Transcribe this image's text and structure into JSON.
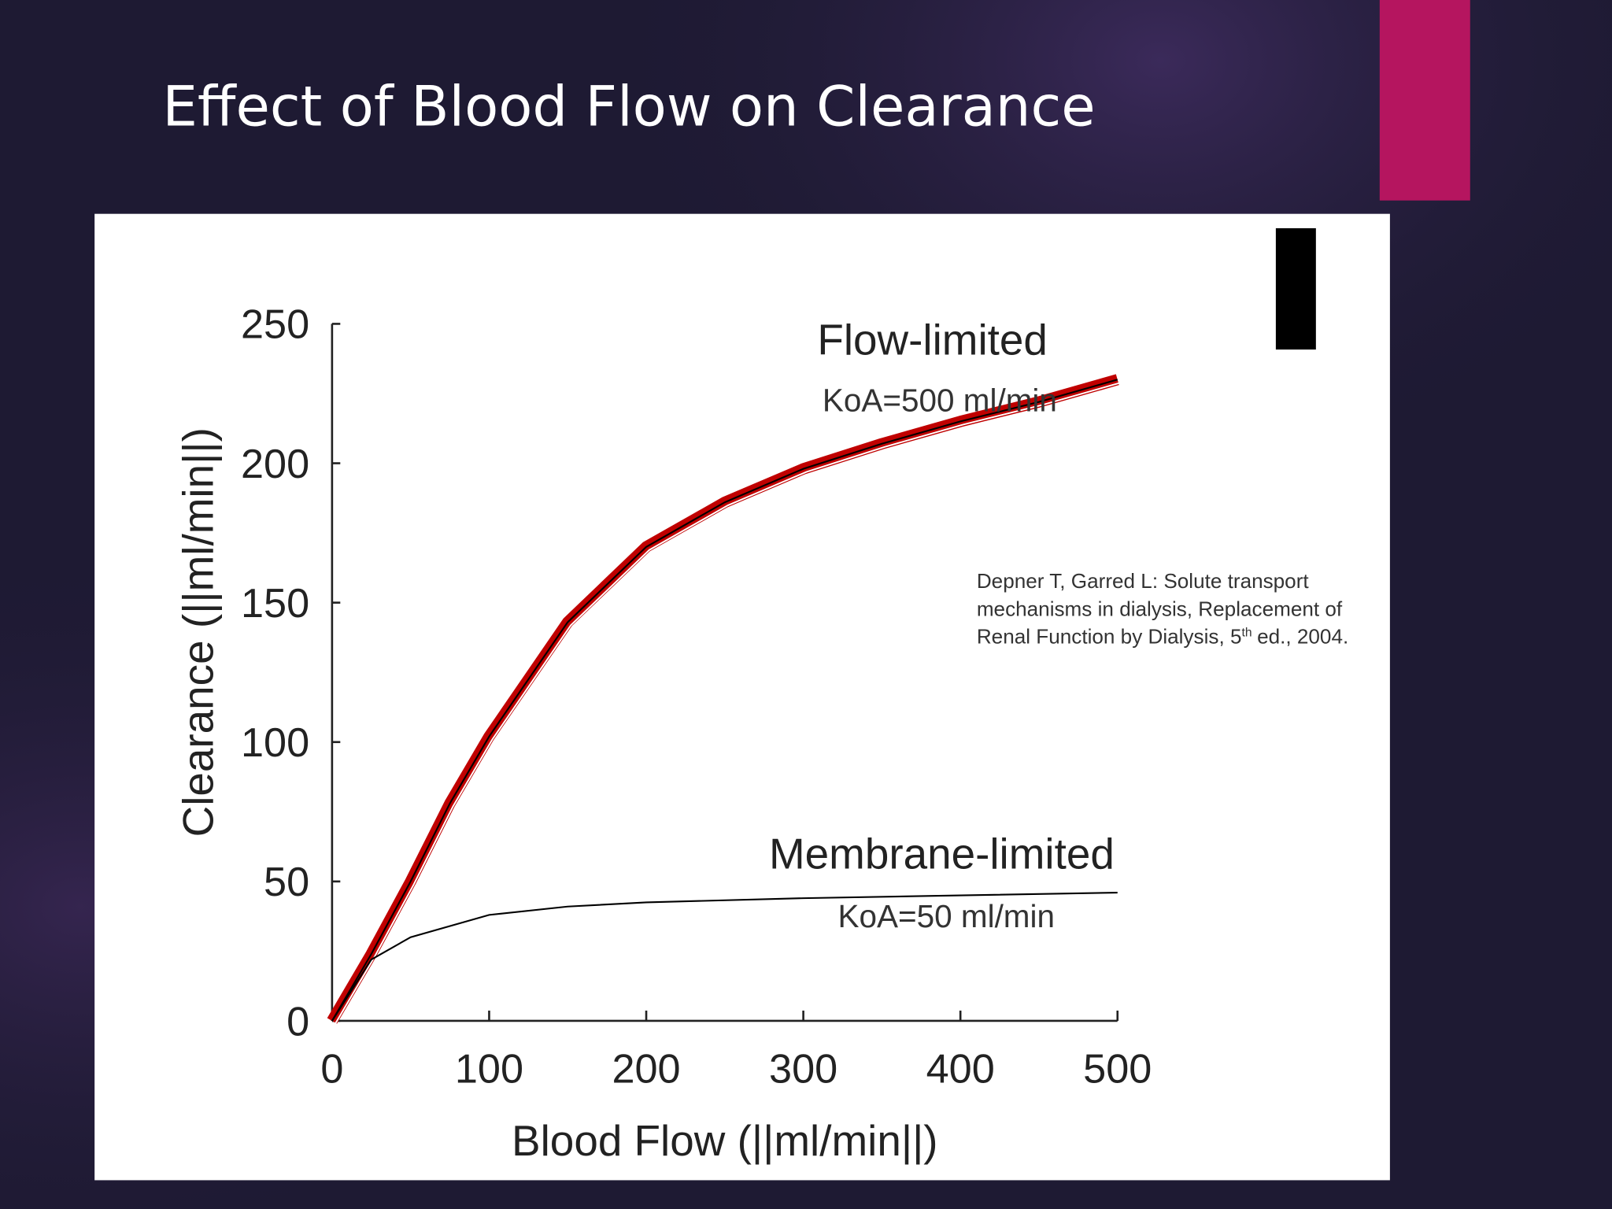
{
  "slide_title": "Effect of Blood Flow on Clearance",
  "chart_data": {
    "type": "line",
    "x_label": "Blood Flow (||ml/min||)",
    "y_label": "Clearance (||ml/min||)",
    "xlim": [
      0,
      500
    ],
    "ylim": [
      0,
      250
    ],
    "xticks": [
      0,
      100,
      200,
      300,
      400,
      500
    ],
    "yticks": [
      0,
      50,
      100,
      150,
      200,
      250
    ],
    "grid": false,
    "series": [
      {
        "name": "Flow-limited",
        "subtitle": "KoA=500 ml/min",
        "color": "#000000",
        "highlight_color": "#c00000",
        "x": [
          0,
          25,
          50,
          75,
          100,
          150,
          200,
          250,
          300,
          350,
          400,
          450,
          500
        ],
        "values": [
          0,
          24,
          50,
          78,
          102,
          143,
          170,
          186,
          198,
          207,
          215,
          222,
          230
        ]
      },
      {
        "name": "Membrane-limited",
        "subtitle": "KoA=50 ml/min",
        "color": "#000000",
        "x": [
          0,
          25,
          50,
          100,
          150,
          200,
          300,
          400,
          500
        ],
        "values": [
          0,
          22,
          30,
          38,
          41,
          42.5,
          44,
          45,
          46
        ]
      }
    ],
    "citation": {
      "lines": [
        "Depner T, Garred L: Solute transport",
        "mechanisms in dialysis, Replacement of"
      ],
      "last_line": {
        "before": "Renal Function by Dialysis, 5",
        "sup": "th",
        "after": "ed., 2004."
      }
    }
  }
}
